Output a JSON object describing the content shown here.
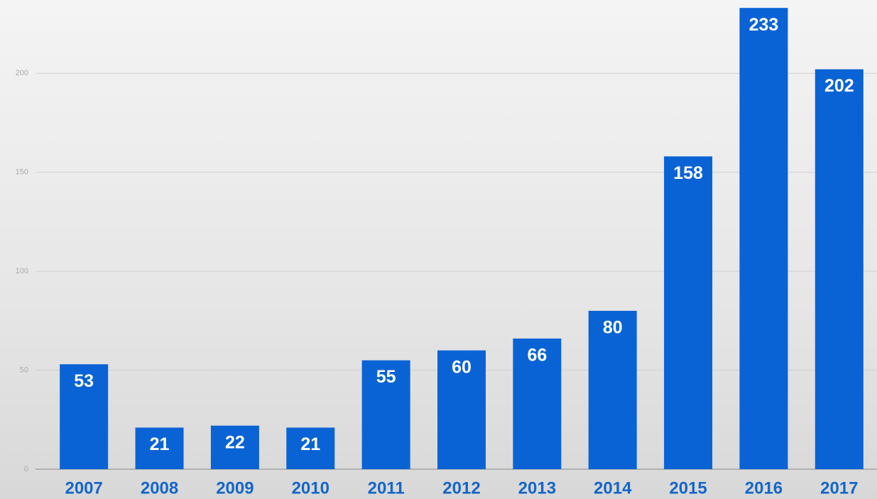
{
  "chart_data": {
    "type": "bar",
    "categories": [
      "2007",
      "2008",
      "2009",
      "2010",
      "2011",
      "2012",
      "2013",
      "2014",
      "2015",
      "2016",
      "2017"
    ],
    "values": [
      53,
      21,
      22,
      21,
      55,
      60,
      66,
      80,
      158,
      233,
      202
    ],
    "color": "#0a63d4",
    "ylim": [
      0,
      237
    ],
    "yticks": [
      0,
      50,
      100,
      150,
      200
    ],
    "grid": true
  }
}
